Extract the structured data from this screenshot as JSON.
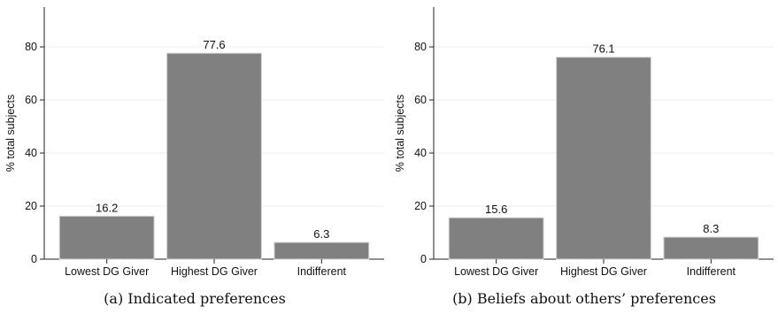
{
  "chart_data": [
    {
      "type": "bar",
      "caption": "(a) Indicated preferences",
      "ylabel": "% total subjects",
      "categories": [
        "Lowest DG Giver",
        "Highest DG Giver",
        "Indifferent"
      ],
      "values": [
        16.2,
        77.6,
        6.3
      ],
      "data_labels": [
        "16.2",
        "77.6",
        "6.3"
      ],
      "ylim": [
        0,
        95
      ],
      "yticks": [
        0,
        20,
        40,
        60,
        80
      ],
      "grid": true,
      "bar_color": "#808080"
    },
    {
      "type": "bar",
      "caption": "(b) Beliefs about others’ preferences",
      "ylabel": "% total subjects",
      "categories": [
        "Lowest DG Giver",
        "Highest DG Giver",
        "Indifferent"
      ],
      "values": [
        15.6,
        76.1,
        8.3
      ],
      "data_labels": [
        "15.6",
        "76.1",
        "8.3"
      ],
      "ylim": [
        0,
        95
      ],
      "yticks": [
        0,
        20,
        40,
        60,
        80
      ],
      "grid": true,
      "bar_color": "#808080"
    }
  ]
}
